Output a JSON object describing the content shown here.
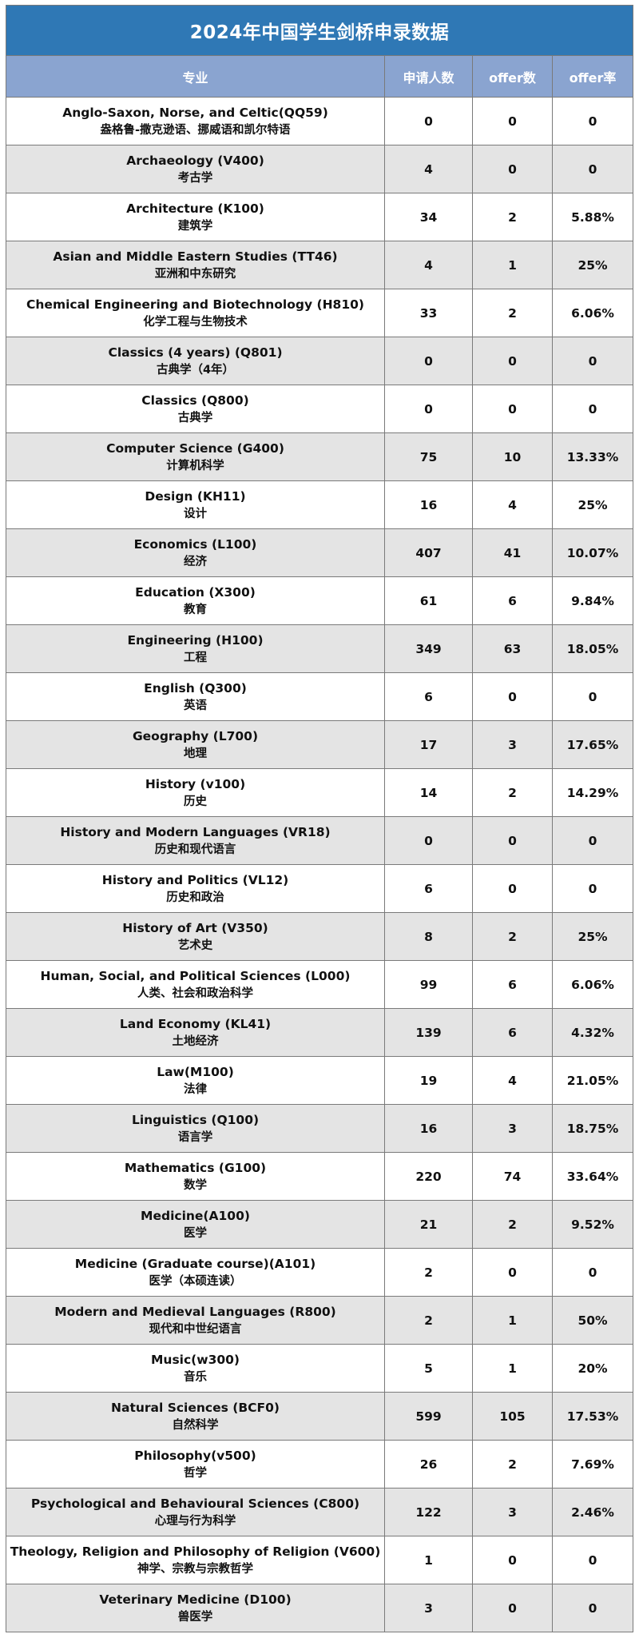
{
  "title": "2024年中国学生剑桥申录数据",
  "headers": {
    "major": "专业",
    "applicants": "申请人数",
    "offers": "offer数",
    "offer_rate": "offer率"
  },
  "colors": {
    "title_bg": "#2f78b5",
    "header_bg": "#8aa4d0",
    "stripe": "#e4e4e4"
  },
  "rows": [
    {
      "en": "Anglo-Saxon, Norse, and Celtic(QQ59)",
      "zh": "盎格鲁-撒克逊语、挪威语和凯尔特语",
      "applicants": "0",
      "offers": "0",
      "rate": "0"
    },
    {
      "en": "Archaeology (V400)",
      "zh": "考古学",
      "applicants": "4",
      "offers": "0",
      "rate": "0"
    },
    {
      "en": "Architecture (K100)",
      "zh": "建筑学",
      "applicants": "34",
      "offers": "2",
      "rate": "5.88%"
    },
    {
      "en": "Asian and Middle Eastern Studies (TT46)",
      "zh": "亚洲和中东研究",
      "applicants": "4",
      "offers": "1",
      "rate": "25%"
    },
    {
      "en": "Chemical Engineering and Biotechnology (H810)",
      "zh": "化学工程与生物技术",
      "applicants": "33",
      "offers": "2",
      "rate": "6.06%"
    },
    {
      "en": "Classics (4 years) (Q801)",
      "zh": "古典学（4年）",
      "applicants": "0",
      "offers": "0",
      "rate": "0"
    },
    {
      "en": "Classics (Q800)",
      "zh": "古典学",
      "applicants": "0",
      "offers": "0",
      "rate": "0"
    },
    {
      "en": "Computer Science (G400)",
      "zh": "计算机科学",
      "applicants": "75",
      "offers": "10",
      "rate": "13.33%"
    },
    {
      "en": "Design (KH11)",
      "zh": "设计",
      "applicants": "16",
      "offers": "4",
      "rate": "25%"
    },
    {
      "en": "Economics (L100)",
      "zh": "经济",
      "applicants": "407",
      "offers": "41",
      "rate": "10.07%"
    },
    {
      "en": "Education (X300)",
      "zh": "教育",
      "applicants": "61",
      "offers": "6",
      "rate": "9.84%"
    },
    {
      "en": "Engineering (H100)",
      "zh": "工程",
      "applicants": "349",
      "offers": "63",
      "rate": "18.05%"
    },
    {
      "en": "English (Q300)",
      "zh": "英语",
      "applicants": "6",
      "offers": "0",
      "rate": "0"
    },
    {
      "en": "Geography (L700)",
      "zh": "地理",
      "applicants": "17",
      "offers": "3",
      "rate": "17.65%"
    },
    {
      "en": "History (v100)",
      "zh": "历史",
      "applicants": "14",
      "offers": "2",
      "rate": "14.29%"
    },
    {
      "en": "History and Modern Languages (VR18)",
      "zh": "历史和现代语言",
      "applicants": "0",
      "offers": "0",
      "rate": "0"
    },
    {
      "en": "History and Politics (VL12)",
      "zh": "历史和政治",
      "applicants": "6",
      "offers": "0",
      "rate": "0"
    },
    {
      "en": "History of Art (V350)",
      "zh": "艺术史",
      "applicants": "8",
      "offers": "2",
      "rate": "25%"
    },
    {
      "en": "Human, Social, and Political Sciences (L000)",
      "zh": "人类、社会和政治科学",
      "applicants": "99",
      "offers": "6",
      "rate": "6.06%"
    },
    {
      "en": "Land Economy (KL41)",
      "zh": "土地经济",
      "applicants": "139",
      "offers": "6",
      "rate": "4.32%"
    },
    {
      "en": "Law(M100)",
      "zh": "法律",
      "applicants": "19",
      "offers": "4",
      "rate": "21.05%"
    },
    {
      "en": "Linguistics (Q100)",
      "zh": "语言学",
      "applicants": "16",
      "offers": "3",
      "rate": "18.75%"
    },
    {
      "en": "Mathematics (G100)",
      "zh": "数学",
      "applicants": "220",
      "offers": "74",
      "rate": "33.64%"
    },
    {
      "en": "Medicine(A100)",
      "zh": "医学",
      "applicants": "21",
      "offers": "2",
      "rate": "9.52%"
    },
    {
      "en": "Medicine (Graduate course)(A101)",
      "zh": "医学（本硕连读）",
      "applicants": "2",
      "offers": "0",
      "rate": "0"
    },
    {
      "en": "Modern and Medieval Languages (R800)",
      "zh": "现代和中世纪语言",
      "applicants": "2",
      "offers": "1",
      "rate": "50%"
    },
    {
      "en": "Music(w300)",
      "zh": "音乐",
      "applicants": "5",
      "offers": "1",
      "rate": "20%"
    },
    {
      "en": "Natural Sciences (BCF0)",
      "zh": "自然科学",
      "applicants": "599",
      "offers": "105",
      "rate": "17.53%"
    },
    {
      "en": "Philosophy(v500)",
      "zh": "哲学",
      "applicants": "26",
      "offers": "2",
      "rate": "7.69%"
    },
    {
      "en": "Psychological and Behavioural Sciences (C800)",
      "zh": "心理与行为科学",
      "applicants": "122",
      "offers": "3",
      "rate": "2.46%"
    },
    {
      "en": "Theology, Religion and Philosophy of Religion (V600)",
      "zh": "神学、宗教与宗教哲学",
      "applicants": "1",
      "offers": "0",
      "rate": "0"
    },
    {
      "en": "Veterinary Medicine (D100)",
      "zh": "兽医学",
      "applicants": "3",
      "offers": "0",
      "rate": "0"
    }
  ]
}
